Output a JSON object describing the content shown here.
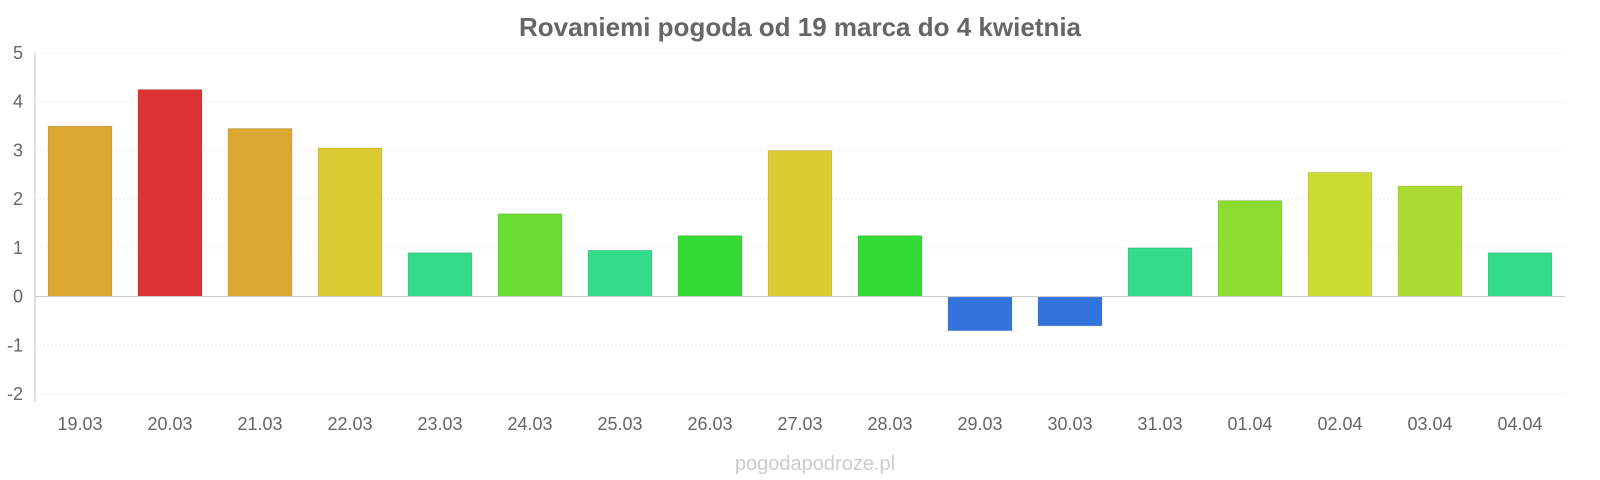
{
  "chart_data": {
    "type": "bar",
    "title": "Rovaniemi pogoda od 19 marca do 4 kwietnia",
    "xlabel": "",
    "ylabel": "",
    "ylim": [
      -2,
      5
    ],
    "yticks": [
      5,
      4,
      3,
      2,
      1,
      0,
      -1,
      -2
    ],
    "grid": true,
    "legend": "none",
    "categories": [
      "19.03",
      "20.03",
      "21.03",
      "22.03",
      "23.03",
      "24.03",
      "25.03",
      "26.03",
      "27.03",
      "28.03",
      "29.03",
      "30.03",
      "31.03",
      "01.04",
      "02.04",
      "03.04",
      "04.04"
    ],
    "values": [
      3.5,
      4.25,
      3.45,
      3.05,
      0.9,
      1.7,
      0.95,
      1.25,
      3.0,
      1.25,
      -0.7,
      -0.6,
      1.0,
      1.97,
      2.55,
      2.27,
      0.9
    ],
    "colors": [
      "#dca832",
      "#dc3232",
      "#dca832",
      "#dcca32",
      "#32dc8a",
      "#6ade32",
      "#32dc8a",
      "#32dc32",
      "#dcca32",
      "#32dc32",
      "#3274dc",
      "#3274dc",
      "#32dc8a",
      "#8cdc32",
      "#ccdc32",
      "#acdc32",
      "#32dc8a"
    ]
  },
  "watermark": "pogodapodroze.pl"
}
